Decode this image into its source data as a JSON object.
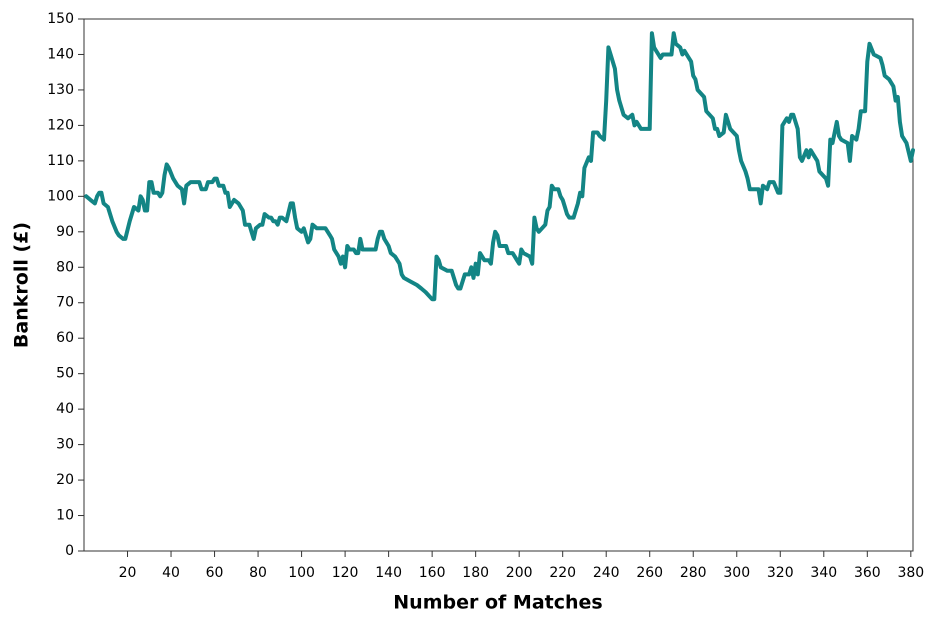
{
  "chart_data": {
    "type": "line",
    "xlabel": "Number of Matches",
    "ylabel": "Bankroll (£)",
    "color": "#138585",
    "x": [
      1,
      3,
      5,
      6,
      7,
      8,
      9,
      11,
      13,
      15,
      16,
      18,
      19,
      21,
      23,
      25,
      26,
      27,
      28,
      29,
      30,
      31,
      32,
      34,
      35,
      36,
      37,
      38,
      39,
      41,
      43,
      45,
      46,
      47,
      49,
      53,
      54,
      56,
      57,
      59,
      60,
      61,
      62,
      64,
      65,
      66,
      67,
      69,
      71,
      73,
      74,
      76,
      77,
      78,
      79,
      81,
      82,
      83,
      85,
      86,
      87,
      88,
      89,
      90,
      91,
      93,
      95,
      96,
      97,
      98,
      100,
      101,
      102,
      103,
      104,
      105,
      107,
      111,
      113,
      114,
      115,
      117,
      118,
      119,
      120,
      121,
      122,
      124,
      125,
      126,
      127,
      128,
      134,
      135,
      136,
      137,
      138,
      140,
      141,
      143,
      145,
      146,
      147,
      150,
      153,
      155,
      157,
      160,
      161,
      162,
      163,
      164,
      167,
      169,
      170,
      171,
      172,
      173,
      175,
      177,
      178,
      179,
      180,
      181,
      182,
      184,
      186,
      187,
      188,
      189,
      190,
      191,
      194,
      195,
      197,
      198,
      199,
      200,
      201,
      202,
      205,
      206,
      207,
      208,
      209,
      212,
      213,
      214,
      215,
      216,
      218,
      219,
      220,
      221,
      222,
      223,
      225,
      227,
      228,
      229,
      230,
      232,
      233,
      234,
      236,
      237,
      239,
      240,
      241,
      242,
      244,
      245,
      246,
      248,
      250,
      252,
      253,
      254,
      256,
      260,
      261,
      262,
      263,
      265,
      266,
      270,
      271,
      272,
      274,
      275,
      276,
      277,
      279,
      280,
      281,
      282,
      285,
      286,
      289,
      290,
      291,
      292,
      294,
      295,
      296,
      297,
      300,
      301,
      302,
      304,
      305,
      306,
      310,
      311,
      312,
      314,
      315,
      317,
      319,
      320,
      321,
      323,
      324,
      325,
      326,
      328,
      329,
      330,
      332,
      333,
      334,
      335,
      337,
      338,
      341,
      342,
      343,
      344,
      346,
      347,
      348,
      351,
      352,
      353,
      355,
      356,
      357,
      359,
      360,
      361,
      363,
      366,
      367,
      368,
      370,
      372,
      373,
      374,
      375,
      376,
      378,
      380,
      381
    ],
    "values": [
      100,
      99,
      98,
      100,
      101,
      101,
      98,
      97,
      93,
      90,
      89,
      88,
      88,
      93,
      97,
      96,
      100,
      99,
      96,
      96,
      104,
      104,
      101,
      101,
      100,
      101,
      106,
      109,
      108,
      105,
      103,
      102,
      98,
      103,
      104,
      104,
      102,
      102,
      104,
      104,
      105,
      105,
      103,
      103,
      101,
      101,
      97,
      99,
      98,
      96,
      92,
      92,
      90,
      88,
      91,
      92,
      92,
      95,
      94,
      94,
      93,
      93,
      92,
      94,
      94,
      93,
      98,
      98,
      94,
      91,
      90,
      91,
      89,
      87,
      88,
      92,
      91,
      91,
      89,
      88,
      85,
      83,
      81,
      83,
      80,
      86,
      85,
      85,
      84,
      84,
      88,
      85,
      85,
      88,
      90,
      90,
      88,
      86,
      84,
      83,
      81,
      78,
      77,
      76,
      75,
      74,
      73,
      71,
      71,
      83,
      82,
      80,
      79,
      79,
      77,
      75,
      74,
      74,
      78,
      78,
      80,
      77,
      81,
      78,
      84,
      82,
      82,
      81,
      87,
      90,
      89,
      86,
      86,
      84,
      84,
      83,
      82,
      81,
      85,
      84,
      83,
      81,
      94,
      91,
      90,
      92,
      96,
      97,
      103,
      102,
      102,
      100,
      99,
      97,
      95,
      94,
      94,
      98,
      101,
      100,
      108,
      111,
      110,
      118,
      118,
      117,
      116,
      127,
      142,
      140,
      136,
      130,
      127,
      123,
      122,
      123,
      120,
      121,
      119,
      119,
      146,
      142,
      141,
      139,
      140,
      140,
      146,
      143,
      142,
      140,
      141,
      140,
      138,
      134,
      133,
      130,
      128,
      124,
      122,
      119,
      119,
      117,
      118,
      123,
      121,
      119,
      117,
      113,
      110,
      107,
      105,
      102,
      102,
      98,
      103,
      102,
      104,
      104,
      101,
      101,
      120,
      122,
      121,
      123,
      123,
      119,
      111,
      110,
      113,
      111,
      113,
      112,
      110,
      107,
      105,
      103,
      116,
      115,
      121,
      117,
      116,
      115,
      110,
      117,
      116,
      119,
      124,
      124,
      138,
      143,
      140,
      139,
      137,
      134,
      133,
      131,
      127,
      128,
      121,
      117,
      115,
      110,
      113
    ],
    "xlim": [
      0,
      381
    ],
    "ylim": [
      0,
      150
    ],
    "xticks": [
      20,
      40,
      60,
      80,
      100,
      120,
      140,
      160,
      180,
      200,
      220,
      240,
      260,
      280,
      300,
      320,
      340,
      360,
      380
    ],
    "yticks": [
      0,
      10,
      20,
      30,
      40,
      50,
      60,
      70,
      80,
      90,
      100,
      110,
      120,
      130,
      140,
      150
    ]
  }
}
